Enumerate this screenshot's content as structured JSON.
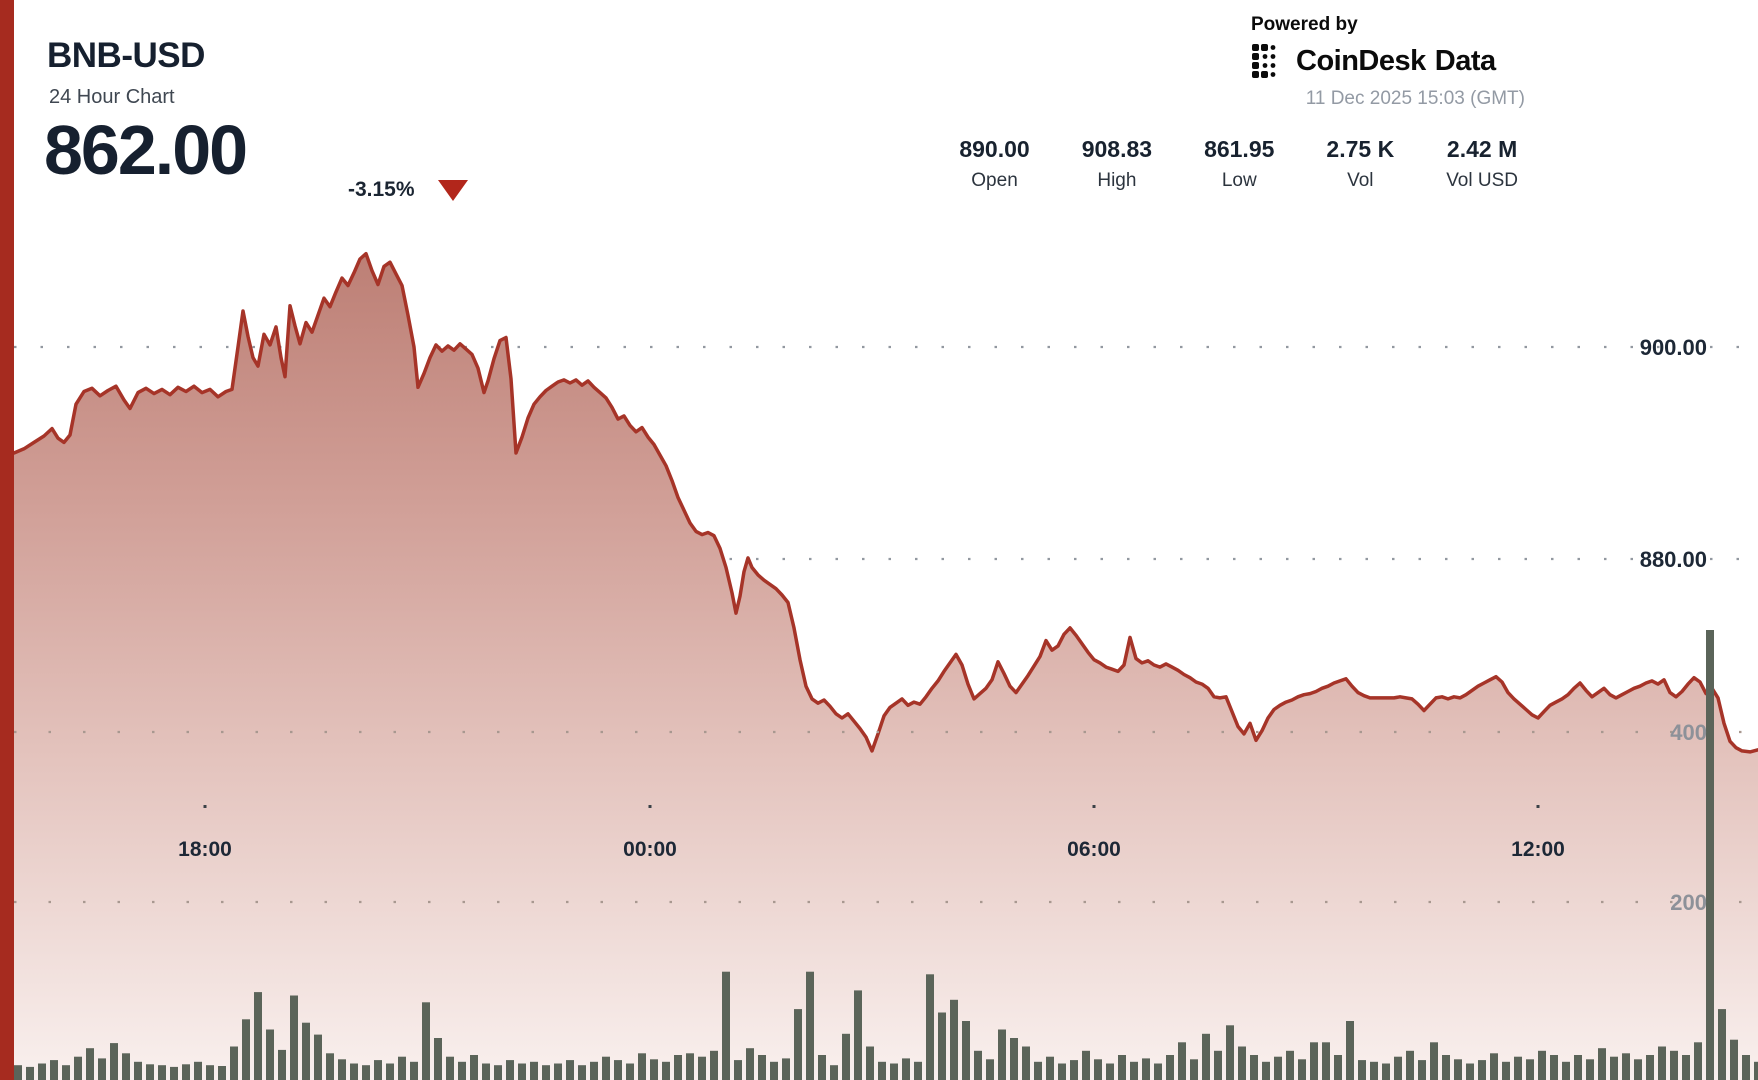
{
  "header": {
    "symbol": "BNB-USD",
    "subtitle": "24 Hour Chart",
    "last_price": "862.00",
    "change_pct": "-3.15%",
    "direction": "down"
  },
  "branding": {
    "powered_by": "Powered by",
    "logo_word1": "CoinDesk",
    "logo_word2": "Data",
    "timestamp": "11 Dec 2025 15:03 (GMT)"
  },
  "stats": [
    {
      "value": "890.00",
      "label": "Open"
    },
    {
      "value": "908.83",
      "label": "High"
    },
    {
      "value": "861.95",
      "label": "Low"
    },
    {
      "value": "2.75 K",
      "label": "Vol"
    },
    {
      "value": "2.42 M",
      "label": "Vol USD"
    }
  ],
  "colors": {
    "edge_strip": "#a62b1f",
    "line_red": "#a63428",
    "triangle_red": "#b2261b",
    "volume_bar": "#5b6459",
    "price_grid_dot": "#9298a0",
    "volume_grid_dot": "#a89890",
    "price_label": "#1d2836",
    "volume_label": "#8d9199",
    "time_label": "#1d2836",
    "area_top": "#bc7e74",
    "area_mid": "#d09e96",
    "area_low": "#e4c4be",
    "area_bottom": "#f9f0ee"
  },
  "chart_data": {
    "type": "area",
    "title": "BNB-USD 24 Hour Chart",
    "legend": "none",
    "grid": "dotted horizontal",
    "price_axis": {
      "side": "right",
      "ticks": [
        {
          "label": "900.00",
          "value": 900
        },
        {
          "label": "880.00",
          "value": 880
        }
      ],
      "range_visible": [
        858,
        910
      ]
    },
    "volume_axis": {
      "side": "right",
      "ticks": [
        {
          "label": "400",
          "value": 400
        },
        {
          "label": "200",
          "value": 200
        }
      ],
      "range": [
        0,
        530
      ]
    },
    "time_axis": {
      "ticks": [
        "18:00",
        "00:00",
        "06:00",
        "12:00"
      ]
    },
    "summary": {
      "open": 890.0,
      "high": 908.83,
      "low": 861.95,
      "close": 862.0,
      "vol": "2.75 K",
      "vol_usd": "2.42 M"
    },
    "price_series": [
      [
        14,
        890.0
      ],
      [
        24,
        890.4
      ],
      [
        34,
        891.0
      ],
      [
        44,
        891.6
      ],
      [
        52,
        892.3
      ],
      [
        58,
        891.4
      ],
      [
        64,
        891.0
      ],
      [
        70,
        891.7
      ],
      [
        76,
        894.6
      ],
      [
        84,
        895.8
      ],
      [
        92,
        896.1
      ],
      [
        100,
        895.4
      ],
      [
        108,
        895.9
      ],
      [
        116,
        896.3
      ],
      [
        124,
        895.0
      ],
      [
        130,
        894.2
      ],
      [
        138,
        895.7
      ],
      [
        146,
        896.1
      ],
      [
        154,
        895.6
      ],
      [
        162,
        896.0
      ],
      [
        170,
        895.5
      ],
      [
        178,
        896.2
      ],
      [
        186,
        895.8
      ],
      [
        194,
        896.3
      ],
      [
        202,
        895.7
      ],
      [
        210,
        896.0
      ],
      [
        218,
        895.3
      ],
      [
        226,
        895.8
      ],
      [
        232,
        896.0
      ],
      [
        238,
        900.0
      ],
      [
        243,
        903.4
      ],
      [
        248,
        901.0
      ],
      [
        253,
        899.0
      ],
      [
        258,
        898.2
      ],
      [
        264,
        901.2
      ],
      [
        270,
        900.2
      ],
      [
        276,
        901.9
      ],
      [
        281,
        899.0
      ],
      [
        285,
        897.2
      ],
      [
        290,
        903.9
      ],
      [
        295,
        902.0
      ],
      [
        300,
        900.3
      ],
      [
        306,
        902.3
      ],
      [
        312,
        901.4
      ],
      [
        318,
        903.0
      ],
      [
        324,
        904.6
      ],
      [
        330,
        903.8
      ],
      [
        336,
        905.2
      ],
      [
        342,
        906.5
      ],
      [
        348,
        905.8
      ],
      [
        354,
        907.0
      ],
      [
        360,
        908.3
      ],
      [
        366,
        908.8
      ],
      [
        372,
        907.2
      ],
      [
        378,
        905.9
      ],
      [
        384,
        907.6
      ],
      [
        390,
        908.0
      ],
      [
        396,
        906.9
      ],
      [
        402,
        905.8
      ],
      [
        408,
        903.0
      ],
      [
        414,
        900.0
      ],
      [
        418,
        896.2
      ],
      [
        424,
        897.5
      ],
      [
        430,
        899.0
      ],
      [
        436,
        900.2
      ],
      [
        442,
        899.6
      ],
      [
        448,
        900.1
      ],
      [
        454,
        899.7
      ],
      [
        460,
        900.3
      ],
      [
        466,
        899.8
      ],
      [
        472,
        899.3
      ],
      [
        478,
        898.0
      ],
      [
        484,
        895.7
      ],
      [
        488,
        896.8
      ],
      [
        494,
        898.9
      ],
      [
        500,
        900.6
      ],
      [
        506,
        900.9
      ],
      [
        511,
        897.0
      ],
      [
        516,
        890.0
      ],
      [
        522,
        891.5
      ],
      [
        528,
        893.3
      ],
      [
        534,
        894.6
      ],
      [
        540,
        895.3
      ],
      [
        546,
        895.9
      ],
      [
        552,
        896.3
      ],
      [
        558,
        896.7
      ],
      [
        564,
        896.9
      ],
      [
        570,
        896.6
      ],
      [
        576,
        896.9
      ],
      [
        582,
        896.4
      ],
      [
        588,
        896.8
      ],
      [
        594,
        896.2
      ],
      [
        600,
        895.7
      ],
      [
        606,
        895.2
      ],
      [
        612,
        894.3
      ],
      [
        618,
        893.2
      ],
      [
        624,
        893.5
      ],
      [
        630,
        892.6
      ],
      [
        636,
        892.0
      ],
      [
        642,
        892.4
      ],
      [
        648,
        891.5
      ],
      [
        654,
        890.8
      ],
      [
        660,
        889.8
      ],
      [
        666,
        888.8
      ],
      [
        672,
        887.4
      ],
      [
        678,
        885.8
      ],
      [
        684,
        884.6
      ],
      [
        690,
        883.4
      ],
      [
        696,
        882.6
      ],
      [
        702,
        882.3
      ],
      [
        708,
        882.5
      ],
      [
        714,
        882.2
      ],
      [
        720,
        881.0
      ],
      [
        726,
        879.2
      ],
      [
        732,
        876.8
      ],
      [
        736,
        874.9
      ],
      [
        740,
        876.5
      ],
      [
        744,
        878.8
      ],
      [
        748,
        880.1
      ],
      [
        752,
        879.2
      ],
      [
        758,
        878.5
      ],
      [
        764,
        878.0
      ],
      [
        770,
        877.6
      ],
      [
        776,
        877.2
      ],
      [
        782,
        876.6
      ],
      [
        788,
        875.9
      ],
      [
        794,
        873.5
      ],
      [
        800,
        870.5
      ],
      [
        806,
        868.0
      ],
      [
        812,
        866.8
      ],
      [
        818,
        866.4
      ],
      [
        824,
        866.7
      ],
      [
        830,
        866.1
      ],
      [
        836,
        865.4
      ],
      [
        842,
        865.0
      ],
      [
        848,
        865.4
      ],
      [
        854,
        864.7
      ],
      [
        860,
        864.0
      ],
      [
        866,
        863.2
      ],
      [
        872,
        861.9
      ],
      [
        878,
        863.5
      ],
      [
        884,
        865.2
      ],
      [
        890,
        866.0
      ],
      [
        896,
        866.4
      ],
      [
        902,
        866.8
      ],
      [
        908,
        866.2
      ],
      [
        914,
        866.5
      ],
      [
        920,
        866.3
      ],
      [
        926,
        867.0
      ],
      [
        932,
        867.8
      ],
      [
        938,
        868.5
      ],
      [
        944,
        869.4
      ],
      [
        950,
        870.2
      ],
      [
        956,
        871.0
      ],
      [
        962,
        870.0
      ],
      [
        968,
        868.2
      ],
      [
        974,
        866.8
      ],
      [
        980,
        867.3
      ],
      [
        986,
        867.8
      ],
      [
        992,
        868.6
      ],
      [
        998,
        870.3
      ],
      [
        1004,
        869.2
      ],
      [
        1010,
        868.0
      ],
      [
        1016,
        867.4
      ],
      [
        1022,
        868.2
      ],
      [
        1028,
        869.0
      ],
      [
        1034,
        869.9
      ],
      [
        1040,
        870.8
      ],
      [
        1046,
        872.3
      ],
      [
        1052,
        871.4
      ],
      [
        1058,
        871.8
      ],
      [
        1064,
        872.9
      ],
      [
        1070,
        873.5
      ],
      [
        1076,
        872.8
      ],
      [
        1082,
        872.0
      ],
      [
        1088,
        871.2
      ],
      [
        1094,
        870.5
      ],
      [
        1100,
        870.2
      ],
      [
        1106,
        869.8
      ],
      [
        1112,
        869.6
      ],
      [
        1118,
        869.4
      ],
      [
        1124,
        870.0
      ],
      [
        1130,
        872.6
      ],
      [
        1136,
        870.6
      ],
      [
        1142,
        870.2
      ],
      [
        1148,
        870.4
      ],
      [
        1154,
        870.0
      ],
      [
        1160,
        869.8
      ],
      [
        1166,
        870.1
      ],
      [
        1172,
        869.8
      ],
      [
        1178,
        869.5
      ],
      [
        1184,
        869.1
      ],
      [
        1190,
        868.8
      ],
      [
        1196,
        868.4
      ],
      [
        1202,
        868.2
      ],
      [
        1208,
        867.8
      ],
      [
        1214,
        867.0
      ],
      [
        1220,
        866.9
      ],
      [
        1226,
        867.0
      ],
      [
        1232,
        865.6
      ],
      [
        1238,
        864.2
      ],
      [
        1244,
        863.5
      ],
      [
        1250,
        864.5
      ],
      [
        1256,
        862.9
      ],
      [
        1262,
        863.8
      ],
      [
        1268,
        865.0
      ],
      [
        1274,
        865.8
      ],
      [
        1280,
        866.2
      ],
      [
        1286,
        866.5
      ],
      [
        1292,
        866.7
      ],
      [
        1298,
        867.0
      ],
      [
        1304,
        867.2
      ],
      [
        1310,
        867.3
      ],
      [
        1316,
        867.5
      ],
      [
        1322,
        867.8
      ],
      [
        1328,
        868.0
      ],
      [
        1334,
        868.3
      ],
      [
        1340,
        868.5
      ],
      [
        1346,
        868.7
      ],
      [
        1352,
        868.0
      ],
      [
        1358,
        867.4
      ],
      [
        1364,
        867.1
      ],
      [
        1370,
        866.9
      ],
      [
        1382,
        866.9
      ],
      [
        1394,
        866.9
      ],
      [
        1400,
        867.0
      ],
      [
        1406,
        866.9
      ],
      [
        1412,
        866.8
      ],
      [
        1418,
        866.3
      ],
      [
        1424,
        865.7
      ],
      [
        1430,
        866.3
      ],
      [
        1436,
        866.9
      ],
      [
        1442,
        867.0
      ],
      [
        1448,
        866.8
      ],
      [
        1454,
        867.0
      ],
      [
        1460,
        866.9
      ],
      [
        1466,
        867.2
      ],
      [
        1472,
        867.6
      ],
      [
        1478,
        868.0
      ],
      [
        1484,
        868.3
      ],
      [
        1490,
        868.6
      ],
      [
        1496,
        868.9
      ],
      [
        1502,
        868.4
      ],
      [
        1508,
        867.4
      ],
      [
        1514,
        866.8
      ],
      [
        1520,
        866.3
      ],
      [
        1526,
        865.8
      ],
      [
        1532,
        865.3
      ],
      [
        1538,
        865.0
      ],
      [
        1544,
        865.6
      ],
      [
        1550,
        866.2
      ],
      [
        1556,
        866.5
      ],
      [
        1562,
        866.8
      ],
      [
        1568,
        867.2
      ],
      [
        1574,
        867.8
      ],
      [
        1580,
        868.3
      ],
      [
        1586,
        867.6
      ],
      [
        1592,
        867.0
      ],
      [
        1598,
        867.4
      ],
      [
        1604,
        867.8
      ],
      [
        1610,
        867.2
      ],
      [
        1616,
        866.9
      ],
      [
        1622,
        867.2
      ],
      [
        1628,
        867.5
      ],
      [
        1634,
        867.8
      ],
      [
        1640,
        868.0
      ],
      [
        1646,
        868.3
      ],
      [
        1652,
        868.5
      ],
      [
        1658,
        868.2
      ],
      [
        1664,
        868.6
      ],
      [
        1670,
        867.4
      ],
      [
        1676,
        867.0
      ],
      [
        1682,
        867.5
      ],
      [
        1688,
        868.2
      ],
      [
        1694,
        868.8
      ],
      [
        1700,
        868.4
      ],
      [
        1706,
        867.3
      ],
      [
        1712,
        867.8
      ],
      [
        1718,
        866.9
      ],
      [
        1724,
        864.5
      ],
      [
        1730,
        862.8
      ],
      [
        1736,
        862.2
      ],
      [
        1742,
        861.9
      ],
      [
        1750,
        861.8
      ],
      [
        1758,
        862.0
      ]
    ],
    "volume_series": [
      8,
      6,
      10,
      14,
      8,
      18,
      28,
      16,
      34,
      22,
      12,
      9,
      8,
      6,
      9,
      12,
      8,
      7,
      30,
      62,
      94,
      50,
      26,
      90,
      58,
      44,
      22,
      15,
      10,
      8,
      14,
      10,
      18,
      12,
      82,
      40,
      18,
      12,
      20,
      10,
      8,
      14,
      10,
      12,
      8,
      10,
      14,
      8,
      12,
      18,
      14,
      10,
      22,
      15,
      12,
      20,
      22,
      18,
      25,
      118,
      14,
      28,
      20,
      12,
      16,
      74,
      118,
      20,
      8,
      45,
      96,
      30,
      12,
      10,
      16,
      12,
      115,
      70,
      85,
      60,
      25,
      15,
      50,
      40,
      30,
      12,
      18,
      10,
      14,
      25,
      15,
      10,
      20,
      12,
      16,
      10,
      20,
      35,
      15,
      45,
      25,
      55,
      30,
      20,
      12,
      18,
      25,
      15,
      35,
      35,
      20,
      60,
      14,
      12,
      10,
      18,
      25,
      14,
      35,
      20,
      15,
      10,
      14,
      22,
      12,
      18,
      15,
      25,
      20,
      12,
      20,
      15,
      28,
      18,
      22,
      15,
      20,
      30,
      25,
      20,
      35,
      520,
      74,
      38,
      20,
      12
    ]
  }
}
